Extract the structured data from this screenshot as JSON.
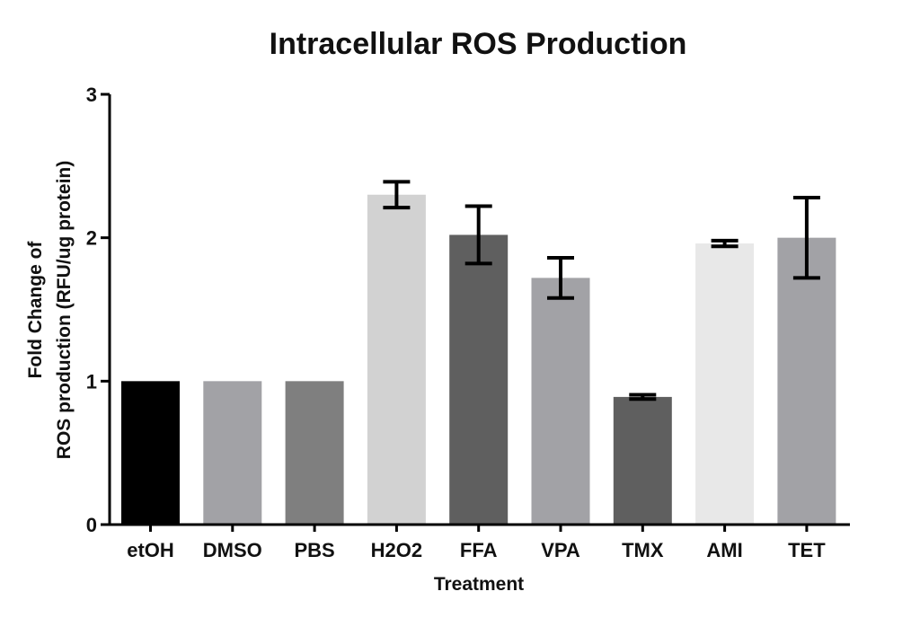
{
  "chart_data": {
    "type": "bar",
    "title": "Intracellular ROS Production",
    "xlabel": "Treatment",
    "ylabel_lines": [
      "Fold Change of",
      "ROS production (RFU/ug protein)"
    ],
    "ylim": [
      0,
      3
    ],
    "yticks": [
      0,
      1,
      2,
      3
    ],
    "grid": false,
    "legend": "none",
    "categories": [
      "etOH",
      "DMSO",
      "PBS",
      "H2O2",
      "FFA",
      "VPA",
      "TMX",
      "AMI",
      "TET"
    ],
    "values": [
      1.0,
      1.0,
      1.0,
      2.3,
      2.02,
      1.72,
      0.89,
      1.96,
      2.0
    ],
    "error": [
      0,
      0,
      0,
      0.09,
      0.2,
      0.14,
      0.015,
      0.02,
      0.28
    ],
    "colors": [
      "#000000",
      "#a2a2a6",
      "#7f7f7f",
      "#d2d2d2",
      "#5f5f5f",
      "#a2a2a6",
      "#5f5f5f",
      "#e8e8e8",
      "#a2a2a6"
    ]
  }
}
